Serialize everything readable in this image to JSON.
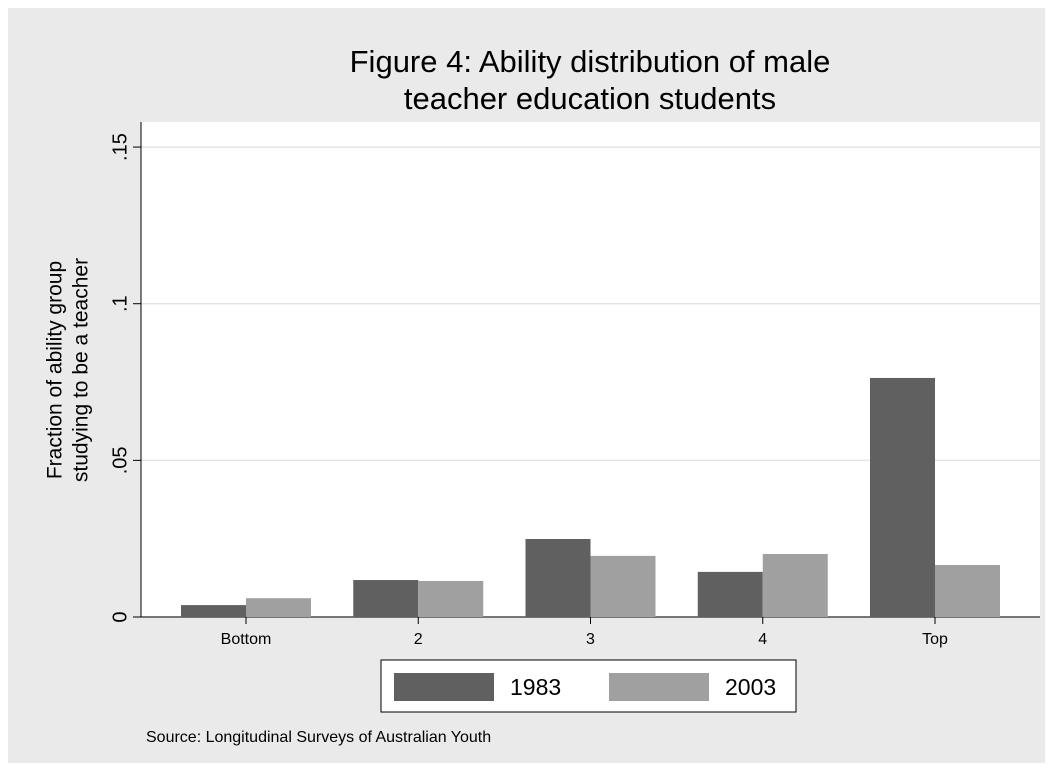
{
  "chart_data": {
    "type": "bar",
    "title": [
      "Figure 4: Ability distribution of male",
      "teacher education students"
    ],
    "y_label": [
      "Fraction of ability group",
      "studying to be a teacher"
    ],
    "note": "Source: Longitudinal Surveys of Australian Youth",
    "categories": [
      "Bottom",
      "2",
      "3",
      "4",
      "Top"
    ],
    "series": [
      {
        "name": "1983",
        "color": "#606060",
        "values": [
          0.0038,
          0.0118,
          0.0249,
          0.0144,
          0.0763
        ]
      },
      {
        "name": "2003",
        "color": "#a0a0a0",
        "values": [
          0.006,
          0.0115,
          0.0195,
          0.0201,
          0.0166
        ]
      }
    ],
    "ylim": [
      0,
      0.158
    ],
    "yticks": [
      0,
      {
        "value": 0.05,
        "label": ".05"
      },
      {
        "value": 0.1,
        "label": ".1"
      },
      {
        "value": 0.15,
        "label": ".15"
      }
    ],
    "grid": true
  }
}
